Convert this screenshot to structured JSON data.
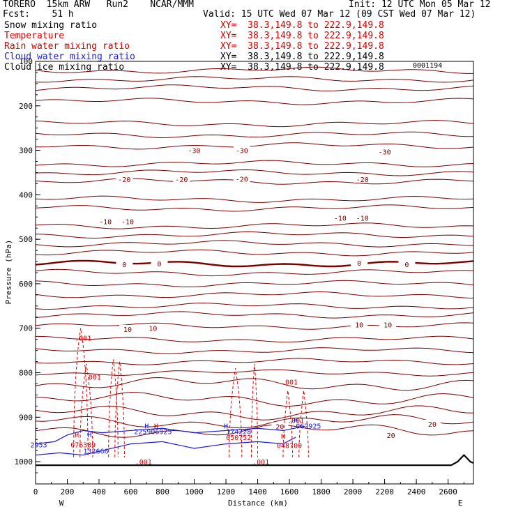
{
  "header": {
    "model": "TORERO  15km ARW   Run2    NCAR/MMM",
    "init": "Init: 12 UTC Mon 05 Mar 12",
    "fcst": "Fcst:    51 h",
    "valid": "Valid: 15 UTC Wed 07 Mar 12 (09 CST Wed 07 Mar 12)",
    "id_tag": "0001194"
  },
  "fields": [
    {
      "name": "Snow mixing ratio",
      "xy": "XY=  38.3,149.8 to 222.9,149.8",
      "color": "#000000"
    },
    {
      "name": "Temperature",
      "xy": "XY=  38.3,149.8 to 222.9,149.8",
      "color": "#d40000"
    },
    {
      "name": "Rain water mixing ratio",
      "xy": "XY=  38.3,149.8 to 222.9,149.8",
      "color": "#d40000"
    },
    {
      "name": "Cloud water mixing ratio",
      "xy": "XY=  38.3,149.8 to 222.9,149.8",
      "color": "#1a1ad0"
    },
    {
      "name": "Cloud ice mixing ratio",
      "xy": "XY=  38.3,149.8 to 222.9,149.8",
      "color": "#000000"
    }
  ],
  "chart_data": {
    "type": "cross-section",
    "xlabel": "Distance (km)",
    "ylabel": "Pressure (hPa)",
    "xlim": [
      0,
      2760
    ],
    "ylim": [
      1050,
      100
    ],
    "x_ticks": [
      0,
      200,
      400,
      600,
      800,
      1000,
      1200,
      1400,
      1600,
      1800,
      2000,
      2200,
      2400,
      2600
    ],
    "y_ticks": [
      100,
      200,
      300,
      400,
      500,
      600,
      700,
      800,
      900,
      1000
    ],
    "x_ends": {
      "left": "W",
      "right": "E"
    },
    "temperature_isotherm_pressures": [
      120,
      140,
      160,
      190,
      240,
      265,
      290,
      330,
      350,
      370,
      410,
      430,
      470,
      490,
      510,
      530,
      555,
      575,
      600,
      625,
      650,
      670,
      695,
      725,
      750,
      775,
      800,
      825,
      860,
      890,
      910,
      930
    ],
    "temperature_labels": [
      {
        "text": "-30",
        "x": 1000,
        "p": 300
      },
      {
        "text": "-30",
        "x": 1300,
        "p": 300
      },
      {
        "text": "-30",
        "x": 2200,
        "p": 303
      },
      {
        "text": "-20",
        "x": 560,
        "p": 365
      },
      {
        "text": "-20",
        "x": 920,
        "p": 365
      },
      {
        "text": "-20",
        "x": 1300,
        "p": 364
      },
      {
        "text": "-20",
        "x": 2060,
        "p": 365
      },
      {
        "text": "-10",
        "x": 440,
        "p": 460
      },
      {
        "text": "-10",
        "x": 580,
        "p": 460
      },
      {
        "text": "-10",
        "x": 1920,
        "p": 452
      },
      {
        "text": "-10",
        "x": 2060,
        "p": 452
      },
      {
        "text": "0",
        "x": 560,
        "p": 556
      },
      {
        "text": "0",
        "x": 780,
        "p": 555
      },
      {
        "text": "0",
        "x": 2040,
        "p": 553
      },
      {
        "text": "0",
        "x": 2340,
        "p": 556
      },
      {
        "text": "10",
        "x": 580,
        "p": 702
      },
      {
        "text": "10",
        "x": 740,
        "p": 700
      },
      {
        "text": "10",
        "x": 2040,
        "p": 692
      },
      {
        "text": "10",
        "x": 2220,
        "p": 692
      },
      {
        "text": "20",
        "x": 1540,
        "p": 921
      },
      {
        "text": "20",
        "x": 2240,
        "p": 940
      },
      {
        "text": "20",
        "x": 2500,
        "p": 915
      }
    ],
    "rain_labels": [
      {
        "text": ".001",
        "x": 300,
        "p": 728
      },
      {
        "text": ".001",
        "x": 360,
        "p": 816
      },
      {
        "text": ".001",
        "x": 1600,
        "p": 827
      },
      {
        "text": ".001",
        "x": 1640,
        "p": 913
      },
      {
        "text": ".001",
        "x": 680,
        "p": 1006
      },
      {
        "text": ".001",
        "x": 1420,
        "p": 1006
      },
      {
        "text": "076389",
        "x": 300,
        "p": 968
      },
      {
        "text": "050752",
        "x": 1280,
        "p": 951
      },
      {
        "text": "048709",
        "x": 1600,
        "p": 969
      },
      {
        "text": "H",
        "x": 260,
        "p": 945
      },
      {
        "text": "H",
        "x": 760,
        "p": 925
      },
      {
        "text": "H",
        "x": 1560,
        "p": 948
      }
    ],
    "cloud_water_labels": [
      {
        "text": "2953",
        "x": 20,
        "p": 968
      },
      {
        "text": "132666",
        "x": 380,
        "p": 982
      },
      {
        "text": "225906925",
        "x": 740,
        "p": 938
      },
      {
        "text": "174228",
        "x": 1280,
        "p": 938
      },
      {
        "text": "062925",
        "x": 1720,
        "p": 925
      },
      {
        "text": "H",
        "x": 340,
        "p": 945
      },
      {
        "text": "H",
        "x": 700,
        "p": 925
      },
      {
        "text": "H",
        "x": 1200,
        "p": 925
      },
      {
        "text": "H",
        "x": 1640,
        "p": 912
      }
    ]
  }
}
